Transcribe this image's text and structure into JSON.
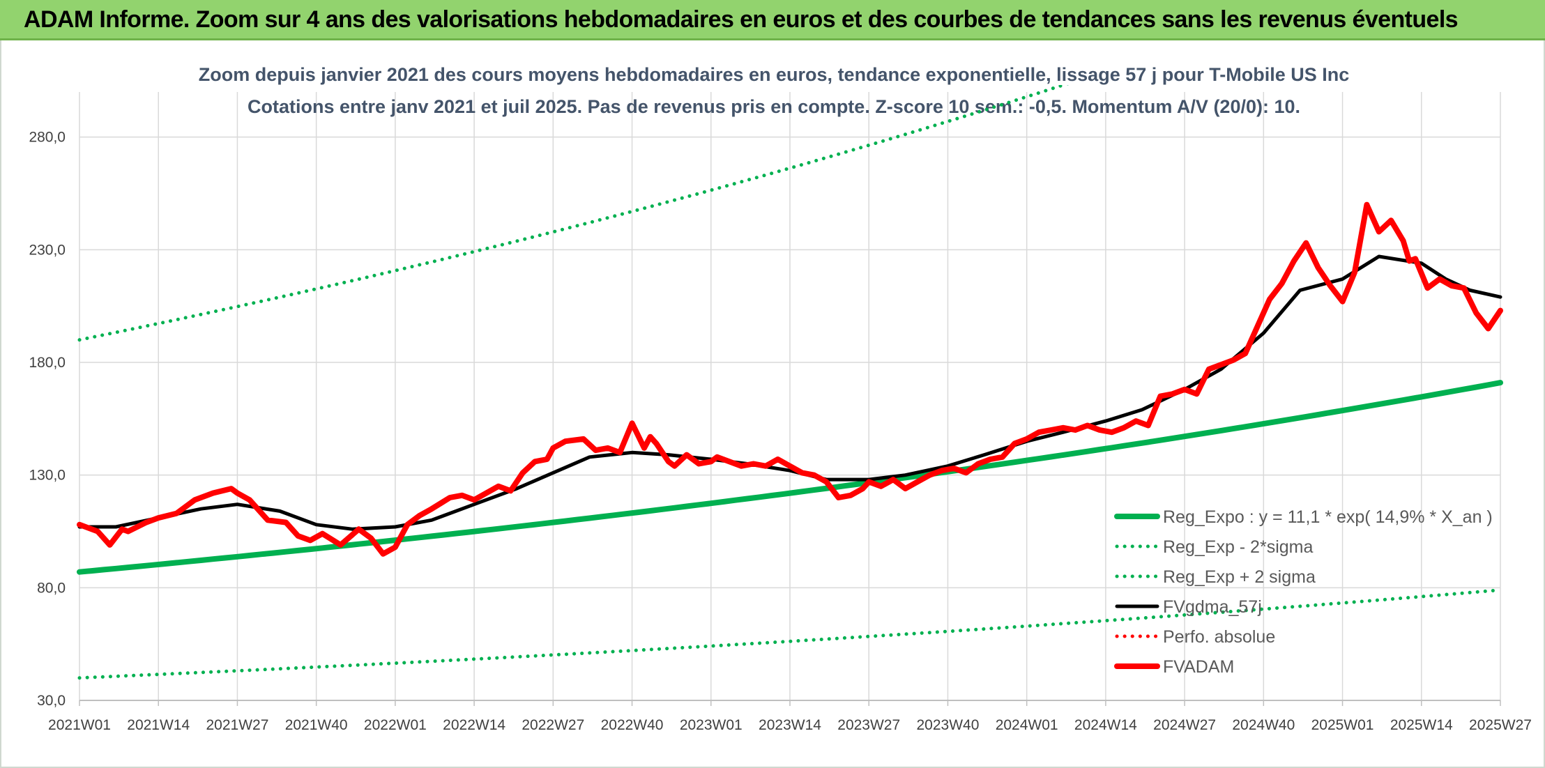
{
  "banner": {
    "title": "ADAM Informe. Zoom sur 4 ans des valorisations hebdomadaires en euros et des courbes de tendances sans les revenus éventuels"
  },
  "colors": {
    "banner_bg": "#92d36e",
    "trend_green": "#00b050",
    "fvadam_red": "#ff0000",
    "fvgdma_black": "#000000",
    "title_text": "#44546a"
  },
  "chart_data": {
    "type": "line",
    "title": "Zoom depuis janvier 2021 des cours moyens hebdomadaires en euros, tendance exponentielle, lissage 57 j pour T-Mobile US Inc",
    "subtitle": "Cotations entre janv 2021 et juil 2025. Pas de revenus pris en compte. Z-score 10 sem.: -0,5. Momentum A/V (20/0): 10.",
    "xlabel": "",
    "ylabel": "",
    "ylim": [
      30,
      300
    ],
    "yticks": [
      "30,0",
      "80,0",
      "130,0",
      "180,0",
      "230,0",
      "280,0"
    ],
    "ytick_values": [
      30,
      80,
      130,
      180,
      230,
      280
    ],
    "xticks": [
      "2021W01",
      "2021W14",
      "2021W27",
      "2021W40",
      "2022W01",
      "2022W14",
      "2022W27",
      "2022W40",
      "2023W01",
      "2023W14",
      "2023W27",
      "2023W40",
      "2024W01",
      "2024W14",
      "2024W27",
      "2024W40",
      "2025W01",
      "2025W14",
      "2025W27"
    ],
    "xtick_index": [
      0,
      13,
      26,
      39,
      52,
      65,
      78,
      91,
      104,
      117,
      130,
      143,
      156,
      169,
      182,
      195,
      208,
      221,
      234
    ],
    "grid": true,
    "legend_position": "bottom-right",
    "series": [
      {
        "name": "Reg_Expo : y = 11,1 * exp( 14,9% *  X_an )",
        "style": "solid-thick",
        "color": "#00b050",
        "x": [
          0,
          234
        ],
        "values": [
          87,
          171
        ]
      },
      {
        "name": "Reg_Exp - 2*sigma",
        "style": "dotted",
        "color": "#00b050",
        "x": [
          0,
          234
        ],
        "values": [
          40,
          79
        ]
      },
      {
        "name": "Reg_Exp + 2 sigma",
        "style": "dotted",
        "color": "#00b050",
        "x": [
          0,
          234
        ],
        "values": [
          190,
          373
        ]
      },
      {
        "name": "FVgdma_57j",
        "style": "solid",
        "color": "#000000",
        "x": [
          0,
          6,
          13,
          20,
          26,
          33,
          39,
          45,
          52,
          58,
          65,
          72,
          78,
          84,
          91,
          97,
          104,
          110,
          117,
          123,
          130,
          136,
          143,
          149,
          156,
          162,
          169,
          175,
          182,
          188,
          195,
          201,
          208,
          214,
          221,
          225,
          229,
          234
        ],
        "values": [
          107,
          107,
          111,
          115,
          117,
          114,
          108,
          106,
          107,
          110,
          117,
          124,
          131,
          138,
          140,
          139,
          137,
          135,
          132,
          128,
          128,
          130,
          134,
          139,
          145,
          149,
          154,
          159,
          168,
          177,
          193,
          212,
          217,
          227,
          224,
          217,
          212,
          209
        ]
      },
      {
        "name": "Perfo. absolue",
        "style": "dotted",
        "color": "#ff0000",
        "x": [],
        "values": []
      },
      {
        "name": "FVADAM",
        "style": "solid-thick",
        "color": "#ff0000",
        "x": [
          0,
          3,
          5,
          7,
          8,
          11,
          13,
          16,
          19,
          22,
          25,
          26,
          28,
          31,
          34,
          36,
          38,
          40,
          43,
          46,
          48,
          50,
          52,
          54,
          56,
          58,
          61,
          63,
          65,
          67,
          69,
          71,
          73,
          75,
          77,
          78,
          80,
          83,
          85,
          87,
          89,
          91,
          93,
          94,
          95,
          97,
          98,
          100,
          102,
          104,
          105,
          107,
          109,
          111,
          113,
          115,
          117,
          119,
          121,
          123,
          125,
          127,
          129,
          130,
          132,
          134,
          136,
          138,
          140,
          142,
          144,
          146,
          148,
          150,
          152,
          154,
          156,
          158,
          160,
          162,
          164,
          166,
          168,
          170,
          172,
          174,
          176,
          178,
          180,
          182,
          184,
          186,
          188,
          190,
          192,
          194,
          196,
          198,
          200,
          202,
          204,
          206,
          208,
          210,
          212,
          214,
          216,
          218,
          219,
          220,
          222,
          224,
          226,
          228,
          230,
          232,
          234
        ],
        "values": [
          108,
          105,
          99,
          106,
          105,
          109,
          111,
          113,
          119,
          122,
          124,
          122,
          119,
          110,
          109,
          103,
          101,
          104,
          99,
          106,
          102,
          95,
          98,
          108,
          112,
          115,
          120,
          121,
          119,
          122,
          125,
          123,
          131,
          136,
          137,
          142,
          145,
          146,
          141,
          142,
          140,
          153,
          142,
          147,
          144,
          136,
          134,
          139,
          135,
          136,
          138,
          136,
          134,
          135,
          134,
          137,
          134,
          131,
          130,
          127,
          120,
          121,
          124,
          127,
          125,
          128,
          124,
          127,
          130,
          132,
          133,
          131,
          135,
          137,
          138,
          144,
          146,
          149,
          150,
          151,
          150,
          152,
          150,
          149,
          151,
          154,
          152,
          165,
          166,
          168,
          166,
          177,
          179,
          181,
          184,
          196,
          208,
          215,
          225,
          233,
          222,
          214,
          207,
          220,
          250,
          238,
          243,
          234,
          225,
          226,
          213,
          217,
          214,
          213,
          202,
          195,
          203
        ]
      }
    ]
  }
}
